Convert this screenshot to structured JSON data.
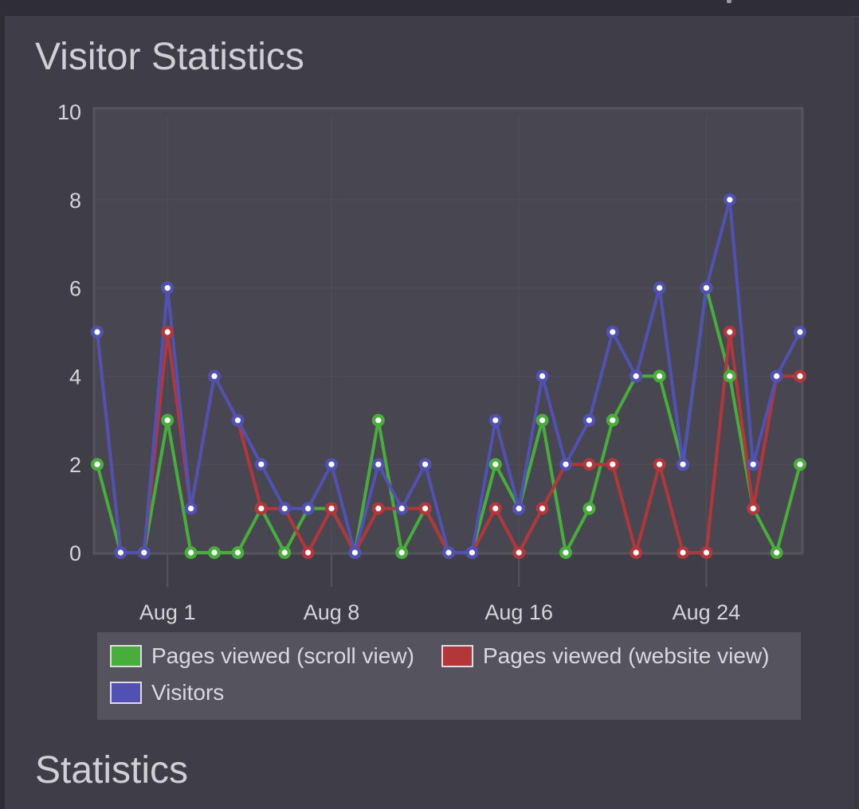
{
  "page": {
    "title": "Visitor Statistics",
    "section_title": "Statistics"
  },
  "colors": {
    "background": "#3f3e48",
    "plot_background": "#484751",
    "green": "#49ad3c",
    "red": "#b3363b",
    "blue": "#5051b3"
  },
  "chart_data": {
    "type": "line",
    "title": "Visitor Statistics",
    "xlabel": "",
    "ylabel": "",
    "ylim": [
      0,
      10
    ],
    "yticks": [
      0,
      2,
      4,
      6,
      8,
      10
    ],
    "x_start": "Jul 29",
    "xticks": [
      {
        "label": "Aug 1",
        "index": 3
      },
      {
        "label": "Aug 8",
        "index": 10
      },
      {
        "label": "Aug 16",
        "index": 18
      },
      {
        "label": "Aug 24",
        "index": 26
      }
    ],
    "grid": true,
    "legend_position": "bottom",
    "series": [
      {
        "name": "Pages viewed (scroll view)",
        "color": "#49ad3c",
        "values": [
          2,
          0,
          0,
          3,
          0,
          0,
          0,
          1,
          0,
          1,
          1,
          0,
          3,
          0,
          1,
          0,
          0,
          2,
          1,
          3,
          0,
          1,
          3,
          4,
          4,
          2,
          6,
          4,
          1,
          0,
          2
        ]
      },
      {
        "name": "Pages viewed (website view)",
        "color": "#b3363b",
        "values": [
          5,
          0,
          0,
          5,
          1,
          4,
          3,
          1,
          1,
          0,
          1,
          0,
          1,
          1,
          1,
          0,
          0,
          1,
          0,
          1,
          2,
          2,
          2,
          0,
          2,
          0,
          0,
          5,
          1,
          4,
          4
        ]
      },
      {
        "name": "Visitors",
        "color": "#5051b3",
        "values": [
          5,
          0,
          0,
          6,
          1,
          4,
          3,
          2,
          1,
          1,
          2,
          0,
          2,
          1,
          2,
          0,
          0,
          3,
          1,
          4,
          2,
          3,
          5,
          4,
          6,
          2,
          6,
          8,
          2,
          4,
          5
        ]
      }
    ]
  }
}
